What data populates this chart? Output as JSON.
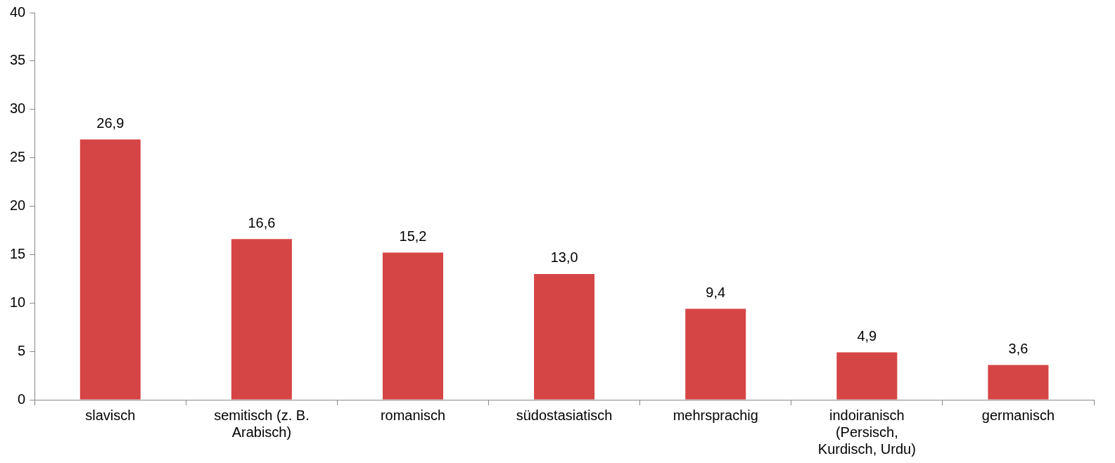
{
  "chart_data": {
    "type": "bar",
    "categories": [
      "slavisch",
      "semitisch (z. B. Arabisch)",
      "romanisch",
      "südostasiatisch",
      "mehrsprachig",
      "indoiranisch (Persisch, Kurdisch, Urdu)",
      "germanisch"
    ],
    "values": [
      26.9,
      16.6,
      15.2,
      13.0,
      9.4,
      4.9,
      3.6
    ],
    "value_labels": [
      "26,9",
      "16,6",
      "15,2",
      "13,0",
      "9,4",
      "4,9",
      "3,6"
    ],
    "color": "#d64545",
    "ylim": [
      0,
      40
    ],
    "yticks": [
      0,
      5,
      10,
      15,
      20,
      25,
      30,
      35,
      40
    ],
    "grid": false,
    "legend": false
  }
}
